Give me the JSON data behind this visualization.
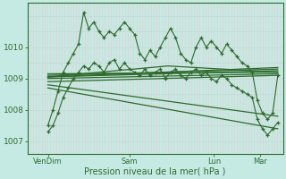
{
  "xlabel": "Pression niveau de la mer( hPa )",
  "bg_color": "#c5eae4",
  "grid_v_color": "#e8c8cc",
  "grid_h_color": "#c0d8d4",
  "line_color": "#2d6b2d",
  "ylim": [
    1006.6,
    1011.4
  ],
  "yticks": [
    1007,
    1008,
    1009,
    1010
  ],
  "xtick_labels": [
    "VenDim",
    "Sam",
    "Lun",
    "Mar"
  ],
  "xtick_positions": [
    0.08,
    0.4,
    0.73,
    0.91
  ],
  "noisy1_x": [
    0.08,
    0.1,
    0.12,
    0.14,
    0.16,
    0.18,
    0.2,
    0.22,
    0.24,
    0.26,
    0.28,
    0.3,
    0.32,
    0.34,
    0.36,
    0.38,
    0.4,
    0.42,
    0.44,
    0.46,
    0.48,
    0.5,
    0.52,
    0.54,
    0.56,
    0.58,
    0.6,
    0.62,
    0.64,
    0.66,
    0.68,
    0.7,
    0.72,
    0.74,
    0.76,
    0.78,
    0.8,
    0.82,
    0.84,
    0.86,
    0.88,
    0.9,
    0.92,
    0.94,
    0.96,
    0.98
  ],
  "noisy1_y": [
    1007.5,
    1008.0,
    1008.6,
    1009.2,
    1009.5,
    1009.8,
    1010.1,
    1011.1,
    1010.6,
    1010.8,
    1010.5,
    1010.3,
    1010.5,
    1010.4,
    1010.6,
    1010.8,
    1010.6,
    1010.4,
    1009.8,
    1009.6,
    1009.9,
    1009.7,
    1010.0,
    1010.3,
    1010.6,
    1010.3,
    1009.8,
    1009.6,
    1009.5,
    1010.0,
    1010.3,
    1010.0,
    1010.2,
    1010.0,
    1009.8,
    1010.1,
    1009.9,
    1009.7,
    1009.5,
    1009.4,
    1009.2,
    1008.3,
    1007.9,
    1007.7,
    1007.9,
    1009.1
  ],
  "noisy2_x": [
    0.08,
    0.1,
    0.12,
    0.14,
    0.16,
    0.18,
    0.2,
    0.22,
    0.24,
    0.26,
    0.28,
    0.3,
    0.32,
    0.34,
    0.36,
    0.38,
    0.4,
    0.42,
    0.44,
    0.46,
    0.48,
    0.5,
    0.52,
    0.54,
    0.56,
    0.58,
    0.6,
    0.62,
    0.64,
    0.66,
    0.68,
    0.7,
    0.72,
    0.74,
    0.76,
    0.78,
    0.8,
    0.82,
    0.84,
    0.86,
    0.88,
    0.9,
    0.92,
    0.94,
    0.96,
    0.98
  ],
  "noisy2_y": [
    1007.3,
    1007.5,
    1007.9,
    1008.4,
    1008.7,
    1009.0,
    1009.2,
    1009.4,
    1009.3,
    1009.5,
    1009.4,
    1009.2,
    1009.5,
    1009.6,
    1009.3,
    1009.5,
    1009.3,
    1009.2,
    1009.1,
    1009.3,
    1009.1,
    1009.2,
    1009.3,
    1009.0,
    1009.2,
    1009.3,
    1009.1,
    1009.0,
    1009.2,
    1009.3,
    1009.1,
    1009.2,
    1009.0,
    1008.9,
    1009.1,
    1009.0,
    1008.8,
    1008.7,
    1008.6,
    1008.5,
    1008.4,
    1007.7,
    1007.4,
    1007.2,
    1007.4,
    1007.6
  ],
  "smooth_lines": [
    {
      "x": [
        0.08,
        0.98
      ],
      "y": [
        1009.05,
        1009.25
      ]
    },
    {
      "x": [
        0.08,
        0.98
      ],
      "y": [
        1009.1,
        1009.3
      ]
    },
    {
      "x": [
        0.08,
        0.98
      ],
      "y": [
        1009.15,
        1009.2
      ]
    },
    {
      "x": [
        0.08,
        0.98
      ],
      "y": [
        1009.05,
        1009.35
      ]
    },
    {
      "x": [
        0.08,
        0.98
      ],
      "y": [
        1009.0,
        1009.15
      ]
    },
    {
      "x": [
        0.08,
        0.98
      ],
      "y": [
        1008.9,
        1009.1
      ]
    },
    {
      "x": [
        0.08,
        0.98
      ],
      "y": [
        1008.8,
        1007.8
      ]
    },
    {
      "x": [
        0.08,
        0.98
      ],
      "y": [
        1008.7,
        1007.4
      ]
    },
    {
      "x": [
        0.08,
        0.55,
        0.98
      ],
      "y": [
        1009.05,
        1009.4,
        1009.2
      ]
    }
  ]
}
